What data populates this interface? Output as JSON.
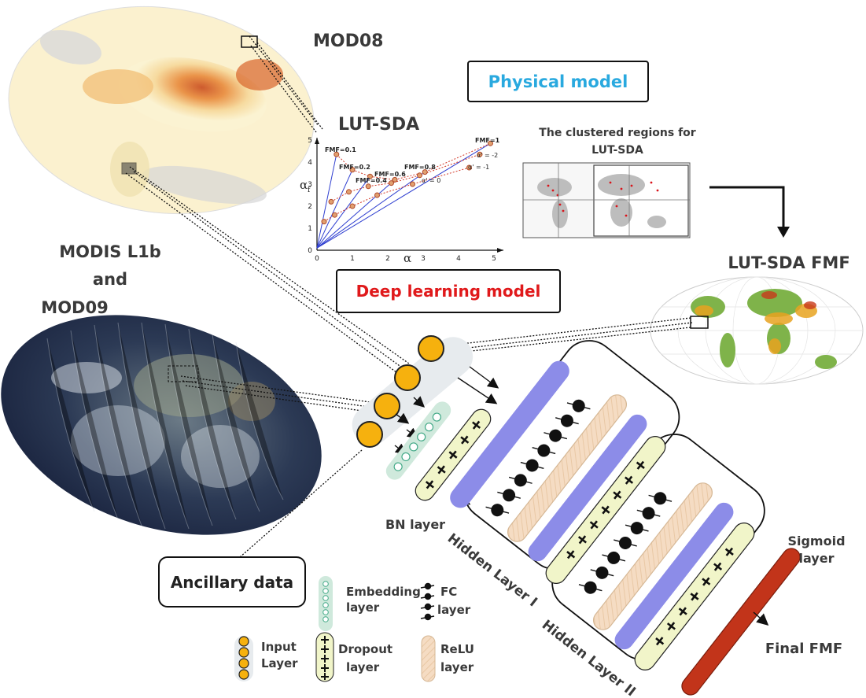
{
  "labels": {
    "mod08": "MOD08",
    "physical_model": "Physical model",
    "lut_sda": "LUT-SDA",
    "clustered_title_1": "The clustered regions for",
    "clustered_title_2": "LUT-SDA",
    "modis_1": "MODIS L1b",
    "modis_2": "and",
    "modis_3": "MOD09",
    "lut_sda_fmf": "LUT-SDA FMF",
    "deep_learning_model": "Deep learning model",
    "bn_layer": "BN layer",
    "hidden_layer_1": "Hidden Layer I",
    "hidden_layer_2": "Hidden Layer II",
    "sigmoid_1": "Sigmoid",
    "sigmoid_2": "layer",
    "final_fmf": "Final FMF",
    "ancillary_data": "Ancillary data"
  },
  "lut_chart": {
    "ylabel": "α",
    "ylabel_sub": "f",
    "xlabel": "α",
    "x_ticks": [
      "0",
      "1",
      "2",
      "3",
      "4",
      "5"
    ],
    "y_ticks": [
      "0",
      "1",
      "2",
      "3",
      "4",
      "5"
    ],
    "fmf_labels": [
      "FMF=0.1",
      "FMF=0.2",
      "FMF=0.4",
      "FMF=0.6",
      "FMF=0.8",
      "FMF=1"
    ],
    "alpha_c_labels": [
      "α' = -2",
      "α' = -1",
      "α' = 0"
    ]
  },
  "legend": {
    "embedding_1": "Embedding",
    "embedding_2": "layer",
    "fc_1": "FC",
    "fc_2": "layer",
    "input_1": "Input",
    "input_2": "Layer",
    "dropout_1": "Dropout",
    "dropout_2": "layer",
    "relu_1": "ReLU",
    "relu_2": "layer"
  },
  "colors": {
    "physical_model": "#29a9df",
    "deep_learning": "#e0191b",
    "input_node": "#f6b10e",
    "bn_bar": "#8c8ce8",
    "relu_bar": "#f5dcc3",
    "dropout_bar": "#f1f5c9",
    "embedding_bar": "#cfe9dc",
    "sigmoid_bar": "#c2341a",
    "node_dark": "#111111"
  }
}
